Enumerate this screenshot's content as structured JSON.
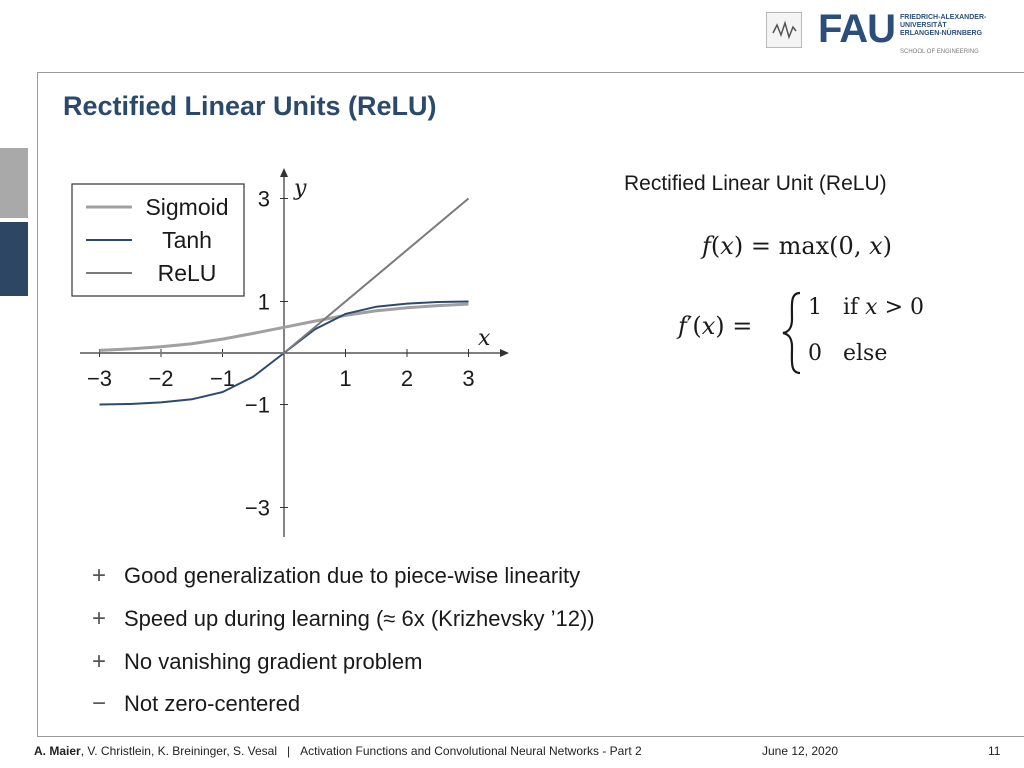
{
  "header": {
    "logo_main": "FAU",
    "logo_univ": "FRIEDRICH-ALEXANDER-\nUNIVERSITÄT\nERLANGEN-NÜRNBERG",
    "logo_school": "SCHOOL OF ENGINEERING"
  },
  "slide": {
    "title": "Rectified Linear Units (ReLU)"
  },
  "formula": {
    "heading": "Rectified Linear Unit (ReLU)",
    "f_lhs": "f",
    "f_arg": "x",
    "f_eq": " = max",
    "f_zero": "0, ",
    "fp_lhs": "f",
    "fp_prime": "′",
    "fp_arg": "x",
    "fp_eq": " =",
    "case1_val": "1",
    "case1_cond": "if ",
    "case1_var": "x",
    "case1_rest": " > 0",
    "case2_val": "0",
    "case2_cond": "else"
  },
  "chart_data": {
    "type": "line",
    "xlabel": "x",
    "ylabel": "y",
    "xlim": [
      -3,
      3
    ],
    "ylim": [
      -3,
      3
    ],
    "x_ticks": [
      {
        "v": -3,
        "label": "−3"
      },
      {
        "v": -2,
        "label": "−2"
      },
      {
        "v": -1,
        "label": "−1"
      },
      {
        "v": 1,
        "label": "1"
      },
      {
        "v": 2,
        "label": "2"
      },
      {
        "v": 3,
        "label": "3"
      }
    ],
    "y_ticks": [
      {
        "v": 3,
        "label": "3"
      },
      {
        "v": 1,
        "label": "1"
      },
      {
        "v": -1,
        "label": "−1"
      },
      {
        "v": -3,
        "label": "−3"
      }
    ],
    "legend_position": "top-left",
    "series": [
      {
        "name": "Sigmoid",
        "color": "#a0a0a0",
        "x": [
          -3,
          -2.5,
          -2,
          -1.5,
          -1,
          -0.5,
          0,
          0.5,
          1,
          1.5,
          2,
          2.5,
          3
        ],
        "values": [
          0.05,
          0.08,
          0.12,
          0.18,
          0.27,
          0.38,
          0.5,
          0.62,
          0.73,
          0.82,
          0.88,
          0.92,
          0.95
        ]
      },
      {
        "name": "Tanh",
        "color": "#2c4a6e",
        "x": [
          -3,
          -2.5,
          -2,
          -1.5,
          -1,
          -0.5,
          0,
          0.5,
          1,
          1.5,
          2,
          2.5,
          3
        ],
        "values": [
          -1.0,
          -0.99,
          -0.96,
          -0.9,
          -0.76,
          -0.46,
          0,
          0.46,
          0.76,
          0.9,
          0.96,
          0.99,
          1.0
        ]
      },
      {
        "name": "ReLU",
        "color": "#7a7a7a",
        "x": [
          -3,
          0,
          3
        ],
        "values": [
          0,
          0,
          3
        ]
      }
    ]
  },
  "bullets": [
    {
      "symbol": "+",
      "text": "Good generalization due to piece-wise linearity"
    },
    {
      "symbol": "+",
      "text": "Speed up during learning (≈ 6x  (Krizhevsky ’12))"
    },
    {
      "symbol": "+",
      "text": "No vanishing gradient problem"
    },
    {
      "symbol": "−",
      "text": "Not zero-centered"
    }
  ],
  "footer": {
    "author_bold": "A. Maier",
    "authors_rest": ", V. Christlein, K. Breininger, S. Vesal",
    "separator": "|",
    "course": "Activation Functions and Convolutional Neural Networks - Part 2",
    "date": "June 12, 2020",
    "page": "11"
  }
}
